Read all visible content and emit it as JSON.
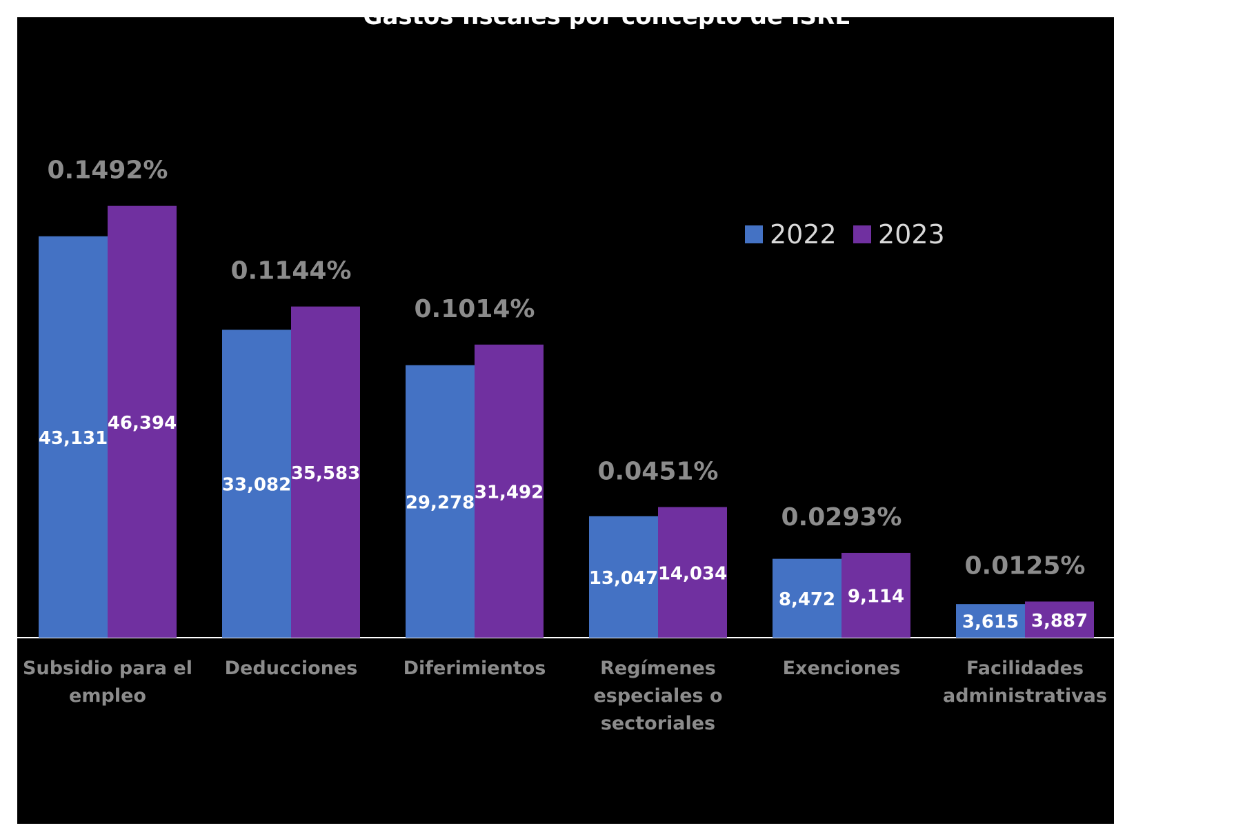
{
  "chart_data": {
    "type": "bar",
    "title": "Gastos fiscales por concepto de ISRE",
    "categories": [
      [
        "Subsidio para el",
        "empleo"
      ],
      [
        "Deducciones"
      ],
      [
        "Diferimientos"
      ],
      [
        "Regímenes",
        "especiales o",
        "sectoriales"
      ],
      [
        "Exenciones"
      ],
      [
        "Facilidades",
        "administrativas"
      ]
    ],
    "series": [
      {
        "name": "2022",
        "color": "#4472C4",
        "values": [
          43131,
          33082,
          29278,
          13047,
          8472,
          3615
        ],
        "labels": [
          "43,131",
          "33,082",
          "29,278",
          "13,047",
          "8,472",
          "3,615"
        ]
      },
      {
        "name": "2023",
        "color": "#7030A0",
        "values": [
          46394,
          35583,
          31492,
          14034,
          9114,
          3887
        ],
        "labels": [
          "46,394",
          "35,583",
          "31,492",
          "14,034",
          "9,114",
          "3,887"
        ]
      }
    ],
    "percent_labels": [
      "0.1492%",
      "0.1144%",
      "0.1014%",
      "0.0451%",
      "0.0293%",
      "0.0125%"
    ],
    "ylim": [
      0,
      52000
    ],
    "grid": false,
    "legend_position": "top-right"
  }
}
